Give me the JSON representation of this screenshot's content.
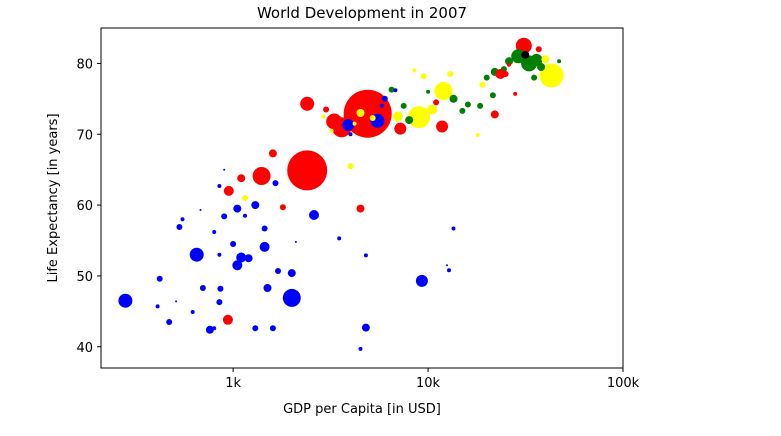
{
  "chart_data": {
    "type": "scatter",
    "title": "World Development in 2007",
    "xlabel": "GDP per Capita [in USD]",
    "ylabel": "Life Expectancy [in years]",
    "xscale": "log",
    "xlim": [
      210,
      100000
    ],
    "ylim": [
      37,
      85
    ],
    "grid": false,
    "xticks": [
      {
        "value": 1000,
        "label": "1k"
      },
      {
        "value": 10000,
        "label": "10k"
      },
      {
        "value": 100000,
        "label": "100k"
      }
    ],
    "yticks": [
      40,
      50,
      60,
      70,
      80
    ],
    "colors": {
      "red": "#ff0000",
      "blue": "#0000ff",
      "yellow": "#ffff00",
      "green": "#008000",
      "black": "#000000"
    },
    "points": [
      {
        "x": 2400,
        "y": 64.9,
        "r": 20,
        "c": "red"
      },
      {
        "x": 4900,
        "y": 72.9,
        "r": 24,
        "c": "red"
      },
      {
        "x": 43000,
        "y": 78.3,
        "r": 12,
        "c": "yellow"
      },
      {
        "x": 31000,
        "y": 82.5,
        "r": 8,
        "c": "red"
      },
      {
        "x": 29000,
        "y": 81.0,
        "r": 7,
        "c": "green"
      },
      {
        "x": 33000,
        "y": 80.0,
        "r": 8,
        "c": "green"
      },
      {
        "x": 36000,
        "y": 80.5,
        "r": 6,
        "c": "green"
      },
      {
        "x": 31500,
        "y": 81.2,
        "r": 4,
        "c": "black"
      },
      {
        "x": 38000,
        "y": 79.5,
        "r": 4,
        "c": "green"
      },
      {
        "x": 40000,
        "y": 80.6,
        "r": 4,
        "c": "yellow"
      },
      {
        "x": 26000,
        "y": 80.3,
        "r": 4,
        "c": "green"
      },
      {
        "x": 24500,
        "y": 79.2,
        "r": 3,
        "c": "green"
      },
      {
        "x": 26000,
        "y": 79.8,
        "r": 2,
        "c": "red"
      },
      {
        "x": 25000,
        "y": 78.5,
        "r": 3,
        "c": "red"
      },
      {
        "x": 35000,
        "y": 78.0,
        "r": 3,
        "c": "green"
      },
      {
        "x": 37000,
        "y": 82.0,
        "r": 3,
        "c": "red"
      },
      {
        "x": 47000,
        "y": 80.3,
        "r": 2,
        "c": "green"
      },
      {
        "x": 28000,
        "y": 75.7,
        "r": 2,
        "c": "red"
      },
      {
        "x": 22000,
        "y": 78.8,
        "r": 4,
        "c": "green"
      },
      {
        "x": 20000,
        "y": 78.0,
        "r": 3,
        "c": "green"
      },
      {
        "x": 23500,
        "y": 78.5,
        "r": 5,
        "c": "red"
      },
      {
        "x": 19000,
        "y": 77.0,
        "r": 3,
        "c": "yellow"
      },
      {
        "x": 21500,
        "y": 75.5,
        "r": 3,
        "c": "green"
      },
      {
        "x": 18500,
        "y": 74.0,
        "r": 3,
        "c": "green"
      },
      {
        "x": 22000,
        "y": 72.8,
        "r": 4,
        "c": "red"
      },
      {
        "x": 18000,
        "y": 69.9,
        "r": 2,
        "c": "yellow"
      },
      {
        "x": 15000,
        "y": 73.3,
        "r": 3,
        "c": "green"
      },
      {
        "x": 16000,
        "y": 74.2,
        "r": 3,
        "c": "green"
      },
      {
        "x": 13000,
        "y": 78.5,
        "r": 3,
        "c": "yellow"
      },
      {
        "x": 12000,
        "y": 76.1,
        "r": 9,
        "c": "yellow"
      },
      {
        "x": 13500,
        "y": 75.0,
        "r": 4,
        "c": "green"
      },
      {
        "x": 11800,
        "y": 71.1,
        "r": 6,
        "c": "red"
      },
      {
        "x": 10500,
        "y": 73.5,
        "r": 5,
        "c": "yellow"
      },
      {
        "x": 11000,
        "y": 74.5,
        "r": 3,
        "c": "red"
      },
      {
        "x": 9000,
        "y": 72.4,
        "r": 11,
        "c": "yellow"
      },
      {
        "x": 8000,
        "y": 72.0,
        "r": 4,
        "c": "green"
      },
      {
        "x": 7500,
        "y": 74.0,
        "r": 3,
        "c": "green"
      },
      {
        "x": 9500,
        "y": 78.2,
        "r": 3,
        "c": "yellow"
      },
      {
        "x": 8500,
        "y": 79.0,
        "r": 2,
        "c": "yellow"
      },
      {
        "x": 10000,
        "y": 76.0,
        "r": 2,
        "c": "green"
      },
      {
        "x": 6500,
        "y": 76.3,
        "r": 3,
        "c": "green"
      },
      {
        "x": 7000,
        "y": 72.5,
        "r": 5,
        "c": "yellow"
      },
      {
        "x": 7200,
        "y": 70.8,
        "r": 6,
        "c": "red"
      },
      {
        "x": 6000,
        "y": 75.0,
        "r": 3,
        "c": "blue"
      },
      {
        "x": 5800,
        "y": 74.0,
        "r": 2,
        "c": "blue"
      },
      {
        "x": 6800,
        "y": 76.2,
        "r": 2,
        "c": "blue"
      },
      {
        "x": 5500,
        "y": 71.9,
        "r": 7,
        "c": "blue"
      },
      {
        "x": 5200,
        "y": 72.3,
        "r": 3,
        "c": "yellow"
      },
      {
        "x": 4500,
        "y": 73.0,
        "r": 4,
        "c": "yellow"
      },
      {
        "x": 3600,
        "y": 71.0,
        "r": 10,
        "c": "red"
      },
      {
        "x": 3300,
        "y": 71.8,
        "r": 8,
        "c": "red"
      },
      {
        "x": 3900,
        "y": 71.3,
        "r": 6,
        "c": "blue"
      },
      {
        "x": 3000,
        "y": 73.5,
        "r": 3,
        "c": "red"
      },
      {
        "x": 2900,
        "y": 72.5,
        "r": 2,
        "c": "yellow"
      },
      {
        "x": 3200,
        "y": 70.5,
        "r": 2,
        "c": "yellow"
      },
      {
        "x": 4200,
        "y": 71.5,
        "r": 2,
        "c": "yellow"
      },
      {
        "x": 4000,
        "y": 70.0,
        "r": 2,
        "c": "blue"
      },
      {
        "x": 2400,
        "y": 74.3,
        "r": 7,
        "c": "red"
      },
      {
        "x": 4000,
        "y": 65.5,
        "r": 3,
        "c": "yellow"
      },
      {
        "x": 1400,
        "y": 64.1,
        "r": 9,
        "c": "red"
      },
      {
        "x": 1100,
        "y": 63.8,
        "r": 4,
        "c": "red"
      },
      {
        "x": 950,
        "y": 62.0,
        "r": 5,
        "c": "red"
      },
      {
        "x": 1600,
        "y": 67.3,
        "r": 4,
        "c": "red"
      },
      {
        "x": 1650,
        "y": 63.1,
        "r": 3,
        "c": "blue"
      },
      {
        "x": 1800,
        "y": 59.7,
        "r": 3,
        "c": "red"
      },
      {
        "x": 1150,
        "y": 61.0,
        "r": 3,
        "c": "yellow"
      },
      {
        "x": 850,
        "y": 62.7,
        "r": 2,
        "c": "blue"
      },
      {
        "x": 900,
        "y": 65.0,
        "r": 1,
        "c": "blue"
      },
      {
        "x": 2600,
        "y": 58.6,
        "r": 5,
        "c": "blue"
      },
      {
        "x": 1300,
        "y": 60.0,
        "r": 4,
        "c": "blue"
      },
      {
        "x": 1050,
        "y": 59.5,
        "r": 4,
        "c": "blue"
      },
      {
        "x": 900,
        "y": 58.4,
        "r": 3,
        "c": "blue"
      },
      {
        "x": 1150,
        "y": 58.5,
        "r": 2,
        "c": "blue"
      },
      {
        "x": 550,
        "y": 58.0,
        "r": 2,
        "c": "blue"
      },
      {
        "x": 530,
        "y": 56.9,
        "r": 3,
        "c": "blue"
      },
      {
        "x": 680,
        "y": 59.3,
        "r": 1,
        "c": "blue"
      },
      {
        "x": 4500,
        "y": 59.5,
        "r": 4,
        "c": "red"
      },
      {
        "x": 1450,
        "y": 56.7,
        "r": 3,
        "c": "blue"
      },
      {
        "x": 800,
        "y": 56.2,
        "r": 2,
        "c": "blue"
      },
      {
        "x": 1000,
        "y": 54.5,
        "r": 3,
        "c": "blue"
      },
      {
        "x": 1450,
        "y": 54.1,
        "r": 5,
        "c": "blue"
      },
      {
        "x": 1100,
        "y": 52.6,
        "r": 5,
        "c": "blue"
      },
      {
        "x": 1200,
        "y": 52.5,
        "r": 4,
        "c": "blue"
      },
      {
        "x": 1050,
        "y": 51.5,
        "r": 5,
        "c": "blue"
      },
      {
        "x": 650,
        "y": 53.0,
        "r": 7,
        "c": "blue"
      },
      {
        "x": 850,
        "y": 53.0,
        "r": 2,
        "c": "blue"
      },
      {
        "x": 3500,
        "y": 55.3,
        "r": 2,
        "c": "blue"
      },
      {
        "x": 4800,
        "y": 52.9,
        "r": 2,
        "c": "blue"
      },
      {
        "x": 2100,
        "y": 54.8,
        "r": 1,
        "c": "blue"
      },
      {
        "x": 13500,
        "y": 56.7,
        "r": 2,
        "c": "blue"
      },
      {
        "x": 12500,
        "y": 51.5,
        "r": 1,
        "c": "blue"
      },
      {
        "x": 12800,
        "y": 50.8,
        "r": 2,
        "c": "blue"
      },
      {
        "x": 1700,
        "y": 50.7,
        "r": 3,
        "c": "blue"
      },
      {
        "x": 2000,
        "y": 50.4,
        "r": 4,
        "c": "blue"
      },
      {
        "x": 420,
        "y": 49.6,
        "r": 3,
        "c": "blue"
      },
      {
        "x": 9300,
        "y": 49.3,
        "r": 6,
        "c": "blue"
      },
      {
        "x": 700,
        "y": 48.3,
        "r": 3,
        "c": "blue"
      },
      {
        "x": 1500,
        "y": 48.3,
        "r": 4,
        "c": "blue"
      },
      {
        "x": 860,
        "y": 48.2,
        "r": 3,
        "c": "blue"
      },
      {
        "x": 2000,
        "y": 46.9,
        "r": 9,
        "c": "blue"
      },
      {
        "x": 280,
        "y": 46.5,
        "r": 7,
        "c": "blue"
      },
      {
        "x": 510,
        "y": 46.4,
        "r": 1,
        "c": "blue"
      },
      {
        "x": 850,
        "y": 46.3,
        "r": 3,
        "c": "blue"
      },
      {
        "x": 410,
        "y": 45.7,
        "r": 2,
        "c": "blue"
      },
      {
        "x": 620,
        "y": 44.9,
        "r": 2,
        "c": "blue"
      },
      {
        "x": 470,
        "y": 43.5,
        "r": 3,
        "c": "blue"
      },
      {
        "x": 940,
        "y": 43.8,
        "r": 5,
        "c": "red"
      },
      {
        "x": 1300,
        "y": 42.6,
        "r": 3,
        "c": "blue"
      },
      {
        "x": 1600,
        "y": 42.6,
        "r": 3,
        "c": "blue"
      },
      {
        "x": 760,
        "y": 42.4,
        "r": 4,
        "c": "blue"
      },
      {
        "x": 800,
        "y": 42.6,
        "r": 2,
        "c": "blue"
      },
      {
        "x": 4800,
        "y": 42.7,
        "r": 4,
        "c": "blue"
      },
      {
        "x": 4500,
        "y": 39.7,
        "r": 2,
        "c": "blue"
      }
    ]
  }
}
